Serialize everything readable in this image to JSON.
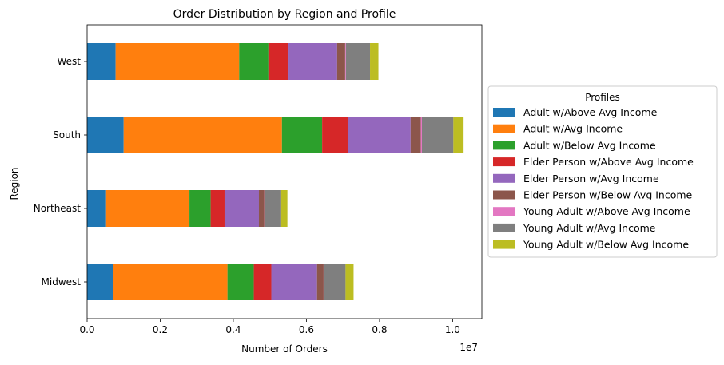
{
  "chart_data": {
    "type": "bar",
    "orientation": "horizontal",
    "stacked": true,
    "title": "Order Distribution by Region and Profile",
    "xlabel": "Number of Orders",
    "ylabel": "Region",
    "x_scale_label": "1e7",
    "xlim": [
      0,
      10800000
    ],
    "x_ticks": [
      0,
      2000000,
      4000000,
      6000000,
      8000000,
      10000000
    ],
    "x_tick_labels": [
      "0.0",
      "0.2",
      "0.4",
      "0.6",
      "0.8",
      "1.0"
    ],
    "categories": [
      "Midwest",
      "Northeast",
      "South",
      "West"
    ],
    "legend_title": "Profiles",
    "legend_position": "right, outside plot",
    "grid": false,
    "series": [
      {
        "name": "Adult w/Above Avg Income",
        "color": "#1f77b4",
        "values": [
          720000,
          520000,
          1000000,
          780000
        ]
      },
      {
        "name": "Adult w/Avg Income",
        "color": "#ff7f0e",
        "values": [
          3120000,
          2280000,
          4330000,
          3380000
        ]
      },
      {
        "name": "Adult w/Below Avg Income",
        "color": "#2ca02c",
        "values": [
          720000,
          580000,
          1100000,
          800000
        ]
      },
      {
        "name": "Elder Person w/Above Avg Income",
        "color": "#d62728",
        "values": [
          480000,
          380000,
          700000,
          550000
        ]
      },
      {
        "name": "Elder Person w/Avg Income",
        "color": "#9467bd",
        "values": [
          1250000,
          940000,
          1720000,
          1330000
        ]
      },
      {
        "name": "Elder Person w/Below Avg Income",
        "color": "#8c564b",
        "values": [
          180000,
          150000,
          280000,
          220000
        ]
      },
      {
        "name": "Young Adult w/Above Avg Income",
        "color": "#e377c2",
        "values": [
          20000,
          20000,
          30000,
          20000
        ]
      },
      {
        "name": "Young Adult w/Avg Income",
        "color": "#7f7f7f",
        "values": [
          580000,
          440000,
          860000,
          660000
        ]
      },
      {
        "name": "Young Adult w/Below Avg Income",
        "color": "#bcbd22",
        "values": [
          220000,
          170000,
          280000,
          230000
        ]
      }
    ]
  }
}
